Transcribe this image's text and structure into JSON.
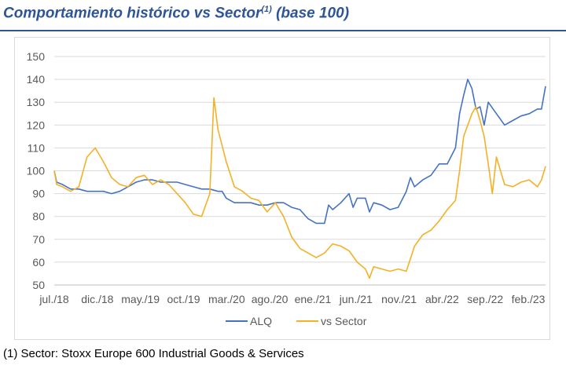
{
  "title": {
    "main": "Comportamiento histórico vs Sector",
    "superscript": "(1)",
    "suffix": " (base 100)"
  },
  "footnote": "(1)  Sector: Stoxx Europe 600 Industrial Goods & Services",
  "colors": {
    "title": "#2F5597",
    "alq": "#4472C4",
    "sector": "#F4B125",
    "grid": "#d9d9d9",
    "axis_text": "#595959"
  },
  "chart_data": {
    "type": "line",
    "title": "Comportamiento histórico vs Sector (base 100)",
    "xlabel": "",
    "ylabel": "",
    "ylim": [
      50,
      150
    ],
    "yticks": [
      50,
      60,
      70,
      80,
      90,
      100,
      110,
      120,
      130,
      140,
      150
    ],
    "xlim": [
      0,
      57
    ],
    "x_ticks": [
      {
        "x": 0,
        "label": "jul./18"
      },
      {
        "x": 5,
        "label": "dic./18"
      },
      {
        "x": 10,
        "label": "may./19"
      },
      {
        "x": 15,
        "label": "oct./19"
      },
      {
        "x": 20,
        "label": "mar./20"
      },
      {
        "x": 25,
        "label": "ago./20"
      },
      {
        "x": 30,
        "label": "ene./21"
      },
      {
        "x": 35,
        "label": "jun./21"
      },
      {
        "x": 40,
        "label": "nov./21"
      },
      {
        "x": 45,
        "label": "abr./22"
      },
      {
        "x": 50,
        "label": "sep./22"
      },
      {
        "x": 55,
        "label": "feb./23"
      }
    ],
    "legend": {
      "position": "bottom"
    },
    "series": [
      {
        "name": "ALQ",
        "color": "#4472C4",
        "points": [
          [
            0,
            100
          ],
          [
            0.3,
            95
          ],
          [
            1,
            94
          ],
          [
            2,
            92
          ],
          [
            3,
            92
          ],
          [
            4,
            91
          ],
          [
            5,
            91
          ],
          [
            6,
            91
          ],
          [
            7,
            90
          ],
          [
            8,
            91
          ],
          [
            9,
            93
          ],
          [
            10,
            95
          ],
          [
            11,
            96
          ],
          [
            12,
            96
          ],
          [
            13,
            95
          ],
          [
            14,
            95
          ],
          [
            15,
            95
          ],
          [
            16,
            94
          ],
          [
            17,
            93
          ],
          [
            18,
            92
          ],
          [
            19,
            92
          ],
          [
            20,
            91
          ],
          [
            20.5,
            91
          ],
          [
            21,
            88
          ],
          [
            22,
            86
          ],
          [
            23,
            86
          ],
          [
            24,
            86
          ],
          [
            25,
            85
          ],
          [
            26,
            85
          ],
          [
            27,
            86
          ],
          [
            28,
            86
          ],
          [
            29,
            84
          ],
          [
            30,
            83
          ],
          [
            31,
            79
          ],
          [
            32,
            77
          ],
          [
            33,
            77
          ],
          [
            33.5,
            85
          ],
          [
            34,
            83
          ],
          [
            35,
            86
          ],
          [
            36,
            90
          ],
          [
            36.5,
            84
          ],
          [
            37,
            88
          ],
          [
            38,
            88
          ],
          [
            38.5,
            82
          ],
          [
            39,
            86
          ],
          [
            40,
            85
          ],
          [
            41,
            83
          ],
          [
            42,
            84
          ],
          [
            43,
            91
          ],
          [
            43.5,
            97
          ],
          [
            44,
            93
          ],
          [
            45,
            96
          ],
          [
            46,
            98
          ],
          [
            47,
            103
          ],
          [
            48,
            103
          ],
          [
            49,
            110
          ],
          [
            49.5,
            125
          ],
          [
            50,
            133
          ],
          [
            50.5,
            140
          ],
          [
            51,
            136
          ],
          [
            51.5,
            127
          ],
          [
            52,
            128
          ],
          [
            52.5,
            120
          ],
          [
            53,
            130
          ],
          [
            54,
            125
          ],
          [
            55,
            120
          ],
          [
            56,
            122
          ],
          [
            57,
            124
          ],
          [
            58,
            125
          ],
          [
            59,
            127
          ],
          [
            59.5,
            127
          ],
          [
            60,
            137
          ]
        ]
      },
      {
        "name": "vs Sector",
        "color": "#F4B125",
        "points": [
          [
            0,
            100
          ],
          [
            0.3,
            94
          ],
          [
            1,
            93
          ],
          [
            2,
            91
          ],
          [
            3,
            93
          ],
          [
            4,
            106
          ],
          [
            5,
            110
          ],
          [
            6,
            104
          ],
          [
            7,
            97
          ],
          [
            8,
            94
          ],
          [
            9,
            93
          ],
          [
            10,
            97
          ],
          [
            11,
            98
          ],
          [
            12,
            94
          ],
          [
            13,
            96
          ],
          [
            14,
            94
          ],
          [
            15,
            90
          ],
          [
            16,
            86
          ],
          [
            17,
            81
          ],
          [
            18,
            80
          ],
          [
            19,
            90
          ],
          [
            19.5,
            132
          ],
          [
            20,
            118
          ],
          [
            21,
            104
          ],
          [
            22,
            93
          ],
          [
            23,
            91
          ],
          [
            24,
            88
          ],
          [
            25,
            87
          ],
          [
            26,
            82
          ],
          [
            27,
            86
          ],
          [
            28,
            80
          ],
          [
            29,
            71
          ],
          [
            30,
            66
          ],
          [
            31,
            64
          ],
          [
            32,
            62
          ],
          [
            33,
            64
          ],
          [
            34,
            68
          ],
          [
            35,
            67
          ],
          [
            36,
            65
          ],
          [
            37,
            60
          ],
          [
            38,
            57
          ],
          [
            38.5,
            53
          ],
          [
            39,
            58
          ],
          [
            40,
            57
          ],
          [
            41,
            56
          ],
          [
            42,
            57
          ],
          [
            43,
            56
          ],
          [
            44,
            67
          ],
          [
            45,
            72
          ],
          [
            46,
            74
          ],
          [
            47,
            78
          ],
          [
            48,
            83
          ],
          [
            49,
            87
          ],
          [
            49.5,
            100
          ],
          [
            50,
            115
          ],
          [
            51,
            125
          ],
          [
            51.5,
            128
          ],
          [
            52,
            122
          ],
          [
            52.5,
            115
          ],
          [
            53,
            103
          ],
          [
            53.5,
            90
          ],
          [
            54,
            106
          ],
          [
            55,
            94
          ],
          [
            56,
            93
          ],
          [
            57,
            95
          ],
          [
            58,
            96
          ],
          [
            59,
            93
          ],
          [
            59.5,
            96
          ],
          [
            60,
            102
          ]
        ]
      }
    ]
  }
}
